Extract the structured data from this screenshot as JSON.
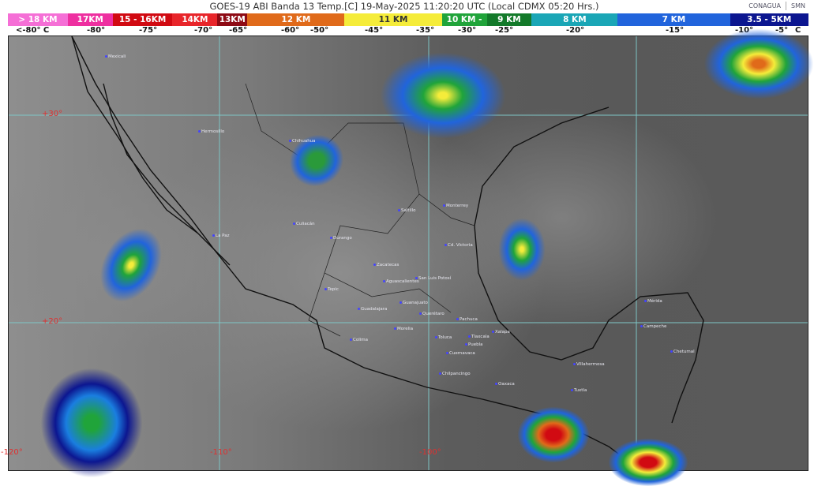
{
  "header": {
    "title": "GOES-19 ABI Banda 13 Temp.[C] 19-May-2025 11:20:20 UTC (Local CDMX  05:20 Hrs.)",
    "logos": [
      "CONAGUA",
      "SMN"
    ]
  },
  "legend": {
    "bands": [
      {
        "label": "> 18 KM",
        "color": "#f56fd6"
      },
      {
        "label": "17KM",
        "color": "#ee2fa0"
      },
      {
        "label": "15 - 16KM",
        "color": "#d10a12"
      },
      {
        "label": "14KM",
        "color": "#e8252a"
      },
      {
        "label": "13KM",
        "color": "#8e0a14"
      },
      {
        "label": "12 KM",
        "color": "#e06a1a"
      },
      {
        "label": "11 KM",
        "color": "#f5ec3a"
      },
      {
        "label": "10 KM -",
        "color": "#20a43a"
      },
      {
        "label": "9 KM",
        "color": "#137a2a"
      },
      {
        "label": "8 KM",
        "color": "#1aa6b6"
      },
      {
        "label": "7 KM",
        "color": "#2164dc"
      },
      {
        "label": "3.5 - 5KM",
        "color": "#0c1690"
      }
    ],
    "temps": [
      "<-80° C",
      "-80°",
      "-75°",
      "-70°",
      "-65°",
      "-60°",
      "-50°",
      "-45°",
      "-35°",
      "-30°",
      "-25°",
      "-20°",
      "-15°",
      "-10°",
      "-5°",
      "C"
    ]
  },
  "map": {
    "lat_labels": [
      "+30°",
      "+20°"
    ],
    "lon_labels": [
      "-120°",
      "-110°",
      "-100°"
    ],
    "cities": [
      "Mexicali",
      "Hermosillo",
      "Chihuahua",
      "La Paz",
      "Culiacán",
      "Durango",
      "Saltillo",
      "Monterrey",
      "Cd. Victoria",
      "Zacatecas",
      "San Luis Potosí",
      "Aguascalientes",
      "Tepic",
      "Guanajuato",
      "Guadalajara",
      "Querétaro",
      "Pachuca",
      "Morelia",
      "Xalapa",
      "Colima",
      "Toluca",
      "Tlaxcala",
      "Puebla",
      "Cuernavaca",
      "Chilpancingo",
      "Oaxaca",
      "Villahermosa",
      "Tuxtla",
      "Campeche",
      "Mérida",
      "Chetumal"
    ]
  }
}
